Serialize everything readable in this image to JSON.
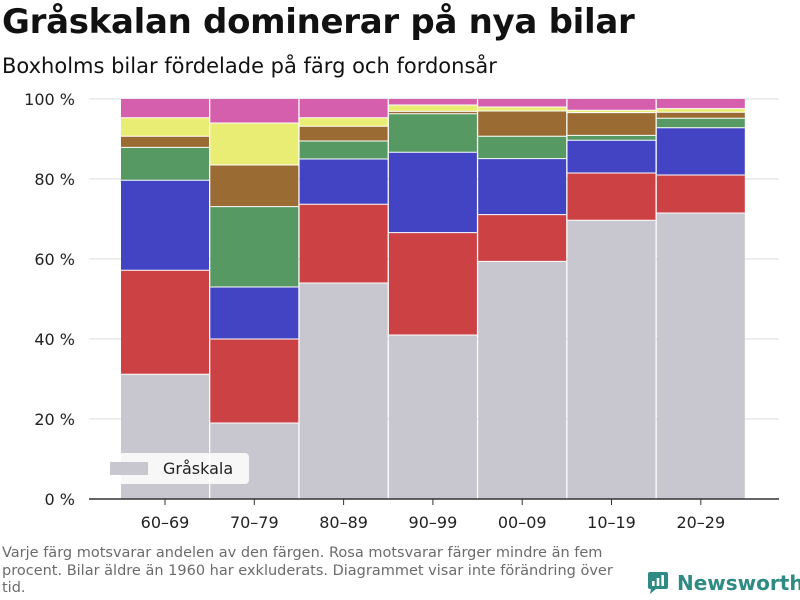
{
  "header": {
    "title": "Gråskalan dominerar på nya bilar",
    "subtitle": "Boxholms bilar fördelade på färg och fordonsår"
  },
  "footer": {
    "note": "Varje färg motsvarar andelen av den färgen. Rosa motsvarar färger mindre än fem procent. Bilar äldre än 1960 har exkluderats. Diagrammet visar inte förändring över tid.",
    "brand": "Newsworthy",
    "brand_color": "#2e8b83"
  },
  "chart_data": {
    "type": "bar",
    "stacked": true,
    "categories": [
      "60–69",
      "70–79",
      "80–89",
      "90–99",
      "00–09",
      "10–19",
      "20–29"
    ],
    "ylim": [
      0,
      100
    ],
    "yticks": [
      0,
      20,
      40,
      60,
      80,
      100
    ],
    "ytick_labels": [
      "0 %",
      "20 %",
      "40 %",
      "60 %",
      "80 %",
      "100 %"
    ],
    "grid": true,
    "legend_position": "bottom-left",
    "series": [
      {
        "name": "Gråskala",
        "color": "#c8c6ce",
        "values": [
          31.2,
          19.0,
          54.0,
          41.0,
          59.4,
          69.7,
          71.5
        ]
      },
      {
        "color": "#cc4244",
        "values": [
          26.0,
          21.0,
          19.7,
          25.6,
          11.7,
          11.8,
          9.5
        ]
      },
      {
        "color": "#4344c3",
        "values": [
          22.5,
          13.0,
          11.3,
          20.1,
          14.0,
          8.2,
          11.8
        ]
      },
      {
        "color": "#579962",
        "values": [
          8.2,
          20.1,
          4.5,
          9.6,
          5.6,
          1.2,
          2.4
        ]
      },
      {
        "color": "#9a6c34",
        "values": [
          2.8,
          10.4,
          3.7,
          0.6,
          6.3,
          5.7,
          1.5
        ]
      },
      {
        "color": "#eaed73",
        "values": [
          4.6,
          10.5,
          2.1,
          1.6,
          1.0,
          0.6,
          0.9
        ]
      },
      {
        "color": "#d65fad",
        "values": [
          4.7,
          6.0,
          4.7,
          1.5,
          2.0,
          2.8,
          2.4
        ]
      }
    ]
  }
}
